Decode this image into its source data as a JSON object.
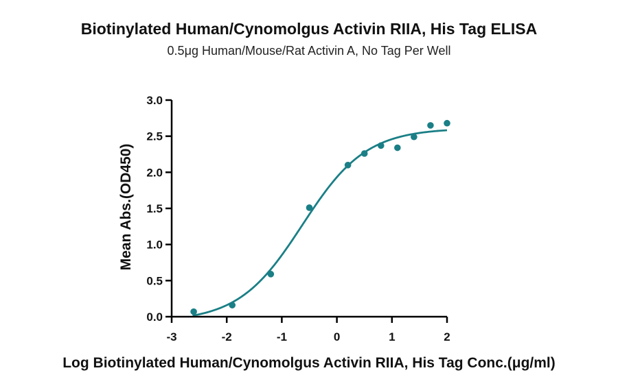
{
  "chart_data": {
    "type": "scatter",
    "title": "Biotinylated Human/Cynomolgus Activin RIIA, His Tag ELISA",
    "subtitle": "0.5μg Human/Mouse/Rat Activin A, No Tag Per Well",
    "xlabel": "Log Biotinylated Human/Cynomolgus Activin RIIA, His Tag Conc.(μg/ml)",
    "ylabel": "Mean Abs.(OD450)",
    "xlim": [
      -3,
      2
    ],
    "ylim": [
      0,
      3
    ],
    "x_ticks": [
      "-3",
      "-2",
      "-1",
      "0",
      "1",
      "2"
    ],
    "y_ticks": [
      "0.0",
      "0.5",
      "1.0",
      "1.5",
      "2.0",
      "2.5",
      "3.0"
    ],
    "grid": false,
    "color": "#1a7f86",
    "series": [
      {
        "x": [
          -2.6,
          -1.9,
          -1.2,
          -0.5,
          0.2,
          0.5,
          0.8,
          1.1,
          1.4,
          1.7,
          2.0
        ],
        "y": [
          0.07,
          0.16,
          0.59,
          1.51,
          2.1,
          2.26,
          2.37,
          2.34,
          2.49,
          2.65,
          2.68
        ],
        "fit": "sigmoidal"
      }
    ]
  }
}
